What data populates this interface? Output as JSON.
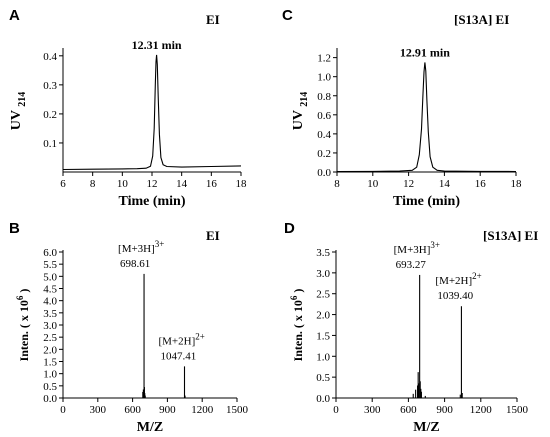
{
  "chart_data": [
    {
      "id": "A",
      "type": "line",
      "panel_label": "A",
      "tag": "EI",
      "xlabel": "Time (min)",
      "ylabel_main": "UV",
      "ylabel_sub": "214",
      "xlim": [
        6,
        18
      ],
      "ylim": [
        0.0,
        0.42
      ],
      "xticks": [
        6,
        8,
        10,
        12,
        14,
        16,
        18
      ],
      "yticks": [
        0.1,
        0.2,
        0.3,
        0.4
      ],
      "ytick_labels": [
        "0.1",
        "0.2",
        "0.3",
        "0.4"
      ],
      "x": [
        6.0,
        8.0,
        10.0,
        11.0,
        11.6,
        11.9,
        12.05,
        12.15,
        12.22,
        12.27,
        12.31,
        12.36,
        12.42,
        12.5,
        12.6,
        12.75,
        13.0,
        14.0,
        16.0,
        18.0
      ],
      "y": [
        0.0085,
        0.0095,
        0.0105,
        0.0115,
        0.013,
        0.02,
        0.055,
        0.15,
        0.3,
        0.38,
        0.403,
        0.37,
        0.26,
        0.13,
        0.05,
        0.025,
        0.019,
        0.017,
        0.019,
        0.021
      ],
      "annotations": [
        {
          "text": "12.31 min",
          "x": 12.31,
          "y": 0.403
        }
      ]
    },
    {
      "id": "C",
      "type": "line",
      "panel_label": "C",
      "tag": "[S13A] EI",
      "xlabel": "Time (min)",
      "ylabel_main": "UV",
      "ylabel_sub": "214",
      "xlim": [
        8,
        18
      ],
      "ylim": [
        0.0,
        1.28
      ],
      "xticks": [
        8,
        10,
        12,
        14,
        16,
        18
      ],
      "yticks": [
        0.0,
        0.2,
        0.4,
        0.6,
        0.8,
        1.0,
        1.2
      ],
      "ytick_labels": [
        "0.0",
        "0.2",
        "0.4",
        "0.6",
        "0.8",
        "1.0",
        "1.2"
      ],
      "x": [
        8.0,
        10.0,
        11.5,
        12.2,
        12.45,
        12.6,
        12.72,
        12.8,
        12.86,
        12.91,
        12.96,
        13.02,
        13.1,
        13.2,
        13.35,
        13.6,
        14.0,
        16.0,
        18.0
      ],
      "y": [
        0.005,
        0.006,
        0.01,
        0.018,
        0.05,
        0.18,
        0.45,
        0.8,
        1.05,
        1.15,
        1.06,
        0.75,
        0.42,
        0.16,
        0.05,
        0.018,
        0.01,
        0.006,
        0.005
      ],
      "annotations": [
        {
          "text": "12.91 min",
          "x": 12.91,
          "y": 1.15
        }
      ]
    },
    {
      "id": "B",
      "type": "bar",
      "panel_label": "B",
      "tag": "EI",
      "xlabel": "M/Z",
      "ylabel_text": "Inten. ( x 10",
      "ylabel_exp": "6",
      "ylabel_close": ")",
      "xlim": [
        0,
        1500
      ],
      "ylim": [
        0.0,
        6.0
      ],
      "xticks": [
        0,
        300,
        600,
        900,
        1200,
        1500
      ],
      "yticks": [
        0.0,
        0.5,
        1.0,
        1.5,
        2.0,
        2.5,
        3.0,
        3.5,
        4.0,
        4.5,
        5.0,
        5.5,
        6.0
      ],
      "ytick_labels": [
        "0.0",
        "0.5",
        "1.0",
        "1.5",
        "2.0",
        "2.5",
        "3.0",
        "3.5",
        "4.0",
        "4.5",
        "5.0",
        "5.5",
        "6.0"
      ],
      "peaks": [
        {
          "x": 688,
          "y": 0.25
        },
        {
          "x": 693,
          "y": 0.35
        },
        {
          "x": 695,
          "y": 0.15
        },
        {
          "x": 698.61,
          "y": 5.1
        },
        {
          "x": 702,
          "y": 0.45
        },
        {
          "x": 705,
          "y": 0.2
        },
        {
          "x": 709,
          "y": 0.1
        },
        {
          "x": 1047.41,
          "y": 1.3
        },
        {
          "x": 1052,
          "y": 0.1
        }
      ],
      "annotations": [
        {
          "ion": "[M+3H]",
          "charge": "3+",
          "mz": "698.61",
          "x": 698.61,
          "y": 5.1
        },
        {
          "ion": "[M+2H]",
          "charge": "2+",
          "mz": "1047.41",
          "x": 1047.41,
          "y": 1.3
        }
      ]
    },
    {
      "id": "D",
      "type": "bar",
      "panel_label": "D",
      "tag": "[S13A] EI",
      "xlabel": "M/Z",
      "ylabel_text": "Inten. ( x 10",
      "ylabel_exp": "6",
      "ylabel_close": ")",
      "xlim": [
        0,
        1500
      ],
      "ylim": [
        0.0,
        3.5
      ],
      "xticks": [
        0,
        300,
        600,
        900,
        1200,
        1500
      ],
      "yticks": [
        0.0,
        0.5,
        1.0,
        1.5,
        2.0,
        2.5,
        3.0,
        3.5
      ],
      "ytick_labels": [
        "0.0",
        "0.5",
        "1.0",
        "1.5",
        "2.0",
        "2.5",
        "3.0",
        "3.5"
      ],
      "peaks": [
        {
          "x": 640,
          "y": 0.1
        },
        {
          "x": 660,
          "y": 0.2
        },
        {
          "x": 676,
          "y": 0.3
        },
        {
          "x": 681,
          "y": 0.62
        },
        {
          "x": 686,
          "y": 0.35
        },
        {
          "x": 693.27,
          "y": 2.95
        },
        {
          "x": 698,
          "y": 0.4
        },
        {
          "x": 703,
          "y": 0.22
        },
        {
          "x": 708,
          "y": 0.15
        },
        {
          "x": 740,
          "y": 0.05
        },
        {
          "x": 1030,
          "y": 0.08
        },
        {
          "x": 1039.4,
          "y": 2.2
        },
        {
          "x": 1046,
          "y": 0.12
        }
      ],
      "annotations": [
        {
          "ion": "[M+3H]",
          "charge": "3+",
          "mz": "693.27",
          "x": 693.27,
          "y": 2.95
        },
        {
          "ion": "[M+2H]",
          "charge": "2+",
          "mz": "1039.40",
          "x": 1039.4,
          "y": 2.2
        }
      ]
    }
  ]
}
